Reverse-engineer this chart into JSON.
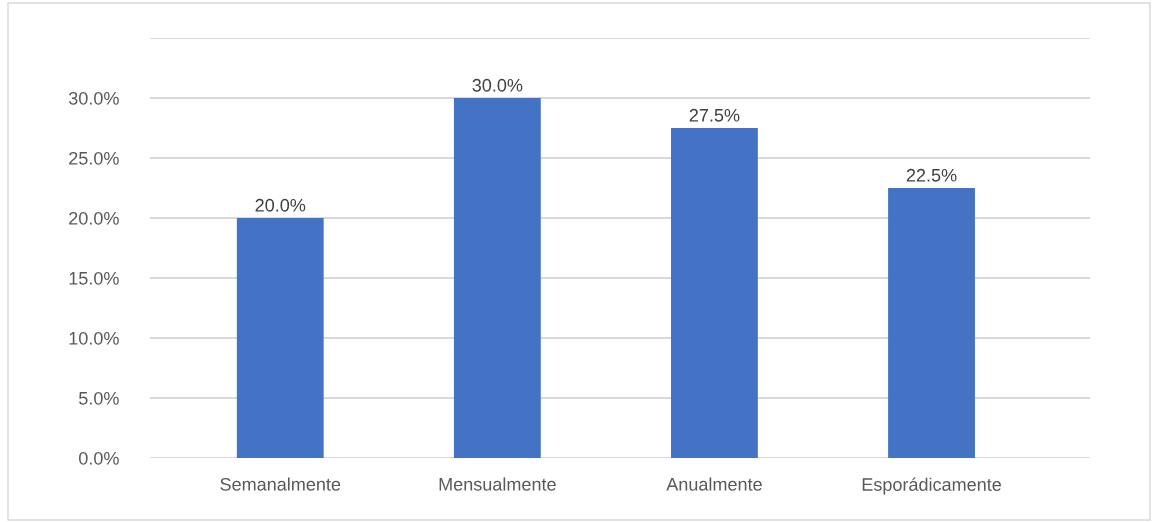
{
  "chart_data": {
    "type": "bar",
    "categories": [
      "Semanalmente",
      "Mensualmente",
      "Anualmente",
      "Esporádicamente"
    ],
    "values": [
      20,
      30,
      27.5,
      22.5
    ],
    "color": "#4472c4",
    "value_labels": [
      "20.0%",
      "30.0%",
      "27.5%",
      "22.5%"
    ],
    "ylim": [
      0,
      35
    ],
    "yticks": [
      {
        "value": 0,
        "label": "0.0%"
      },
      {
        "value": 5,
        "label": "5.0%"
      },
      {
        "value": 10,
        "label": "10.0%"
      },
      {
        "value": 15,
        "label": "15.0%"
      },
      {
        "value": 20,
        "label": "20.0%"
      },
      {
        "value": 25,
        "label": "25.0%"
      },
      {
        "value": 30,
        "label": "30.0%"
      },
      {
        "value": 35,
        "label": null
      }
    ],
    "grid": "y",
    "legend": false
  }
}
